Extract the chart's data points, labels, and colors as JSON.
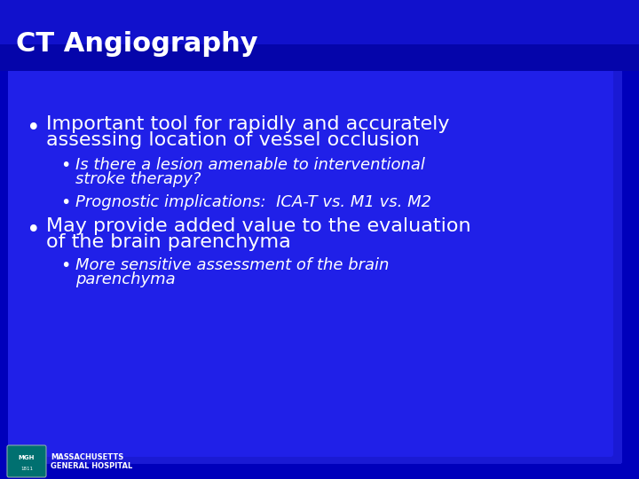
{
  "title": "CT Angiography",
  "title_fontsize": 22,
  "bg_color_outer": "#0000cc",
  "bg_outer_top": "#1a1aee",
  "bg_inner": "#1a1aee",
  "title_bar_color": "#0000bb",
  "text_color": "#ffffff",
  "bullet1_main_line1": "Important tool for rapidly and accurately",
  "bullet1_main_line2": "assessing location of vessel occlusion",
  "bullet1_sub1_line1": "Is there a lesion amenable to interventional",
  "bullet1_sub1_line2": "stroke therapy?",
  "bullet1_sub2": "Prognostic implications:  ICA-T vs. M1 vs. M2",
  "bullet2_main_line1": "May provide added value to the evaluation",
  "bullet2_main_line2": "of the brain parenchyma",
  "bullet2_sub1_line1": "More sensitive assessment of the brain",
  "bullet2_sub1_line2": "parenchyma",
  "main_bullet_fontsize": 16,
  "sub_bullet_fontsize": 13,
  "footer_text1": "MASSACHUSETTS",
  "footer_text2": "GENERAL HOSPITAL",
  "footer_fontsize": 6
}
